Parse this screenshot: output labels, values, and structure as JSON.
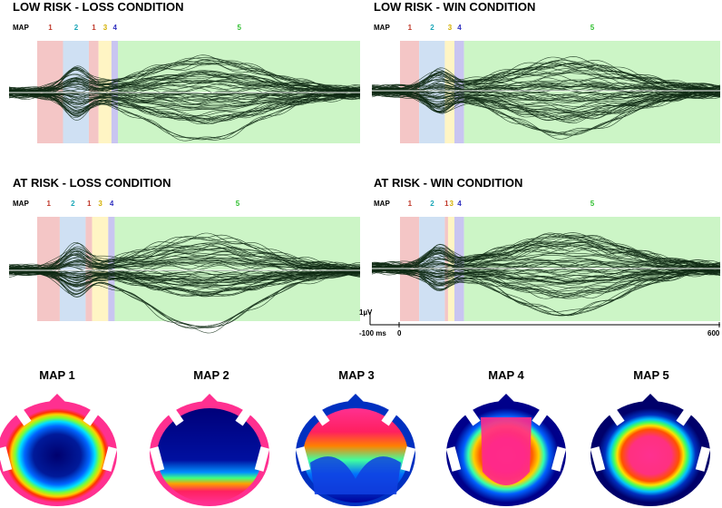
{
  "panels": [
    {
      "title": "LOW RISK - LOSS CONDITION",
      "map_label": "MAP",
      "segments": [
        {
          "label": "1",
          "color": "#f4c6c6",
          "text_color": "#c0392b",
          "start": 0.0,
          "end": 0.08
        },
        {
          "label": "2",
          "color": "#cfe0f3",
          "text_color": "#1aa6b7",
          "start": 0.08,
          "end": 0.16
        },
        {
          "label": "1",
          "color": "#f4c6c6",
          "text_color": "#c0392b",
          "start": 0.16,
          "end": 0.19
        },
        {
          "label": "3",
          "color": "#fff5c4",
          "text_color": "#d4b000",
          "start": 0.19,
          "end": 0.23
        },
        {
          "label": "4",
          "color": "#c9c5f1",
          "text_color": "#2f2fbf",
          "start": 0.23,
          "end": 0.25
        },
        {
          "label": "5",
          "color": "#ccf5c6",
          "text_color": "#2ebf2e",
          "start": 0.25,
          "end": 1.0
        }
      ]
    },
    {
      "title": "LOW RISK - WIN CONDITION",
      "map_label": "MAP",
      "segments": [
        {
          "label": "1",
          "color": "#f4c6c6",
          "text_color": "#c0392b",
          "start": 0.0,
          "end": 0.06
        },
        {
          "label": "2",
          "color": "#cfe0f3",
          "text_color": "#1aa6b7",
          "start": 0.06,
          "end": 0.14
        },
        {
          "label": "3",
          "color": "#fff5c4",
          "text_color": "#d4b000",
          "start": 0.14,
          "end": 0.17
        },
        {
          "label": "4",
          "color": "#c9c5f1",
          "text_color": "#2f2fbf",
          "start": 0.17,
          "end": 0.2
        },
        {
          "label": "5",
          "color": "#ccf5c6",
          "text_color": "#2ebf2e",
          "start": 0.2,
          "end": 1.0
        }
      ]
    },
    {
      "title": "AT RISK - LOSS CONDITION",
      "map_label": "MAP",
      "segments": [
        {
          "label": "1",
          "color": "#f4c6c6",
          "text_color": "#c0392b",
          "start": 0.0,
          "end": 0.07
        },
        {
          "label": "2",
          "color": "#cfe0f3",
          "text_color": "#1aa6b7",
          "start": 0.07,
          "end": 0.15
        },
        {
          "label": "1",
          "color": "#f4c6c6",
          "text_color": "#c0392b",
          "start": 0.15,
          "end": 0.17
        },
        {
          "label": "3",
          "color": "#fff5c4",
          "text_color": "#d4b000",
          "start": 0.17,
          "end": 0.22
        },
        {
          "label": "4",
          "color": "#c9c5f1",
          "text_color": "#2f2fbf",
          "start": 0.22,
          "end": 0.24
        },
        {
          "label": "5",
          "color": "#ccf5c6",
          "text_color": "#2ebf2e",
          "start": 0.24,
          "end": 1.0
        }
      ]
    },
    {
      "title": "AT RISK - WIN CONDITION",
      "map_label": "MAP",
      "segments": [
        {
          "label": "1",
          "color": "#f4c6c6",
          "text_color": "#c0392b",
          "start": 0.0,
          "end": 0.06
        },
        {
          "label": "2",
          "color": "#cfe0f3",
          "text_color": "#1aa6b7",
          "start": 0.06,
          "end": 0.14
        },
        {
          "label": "1",
          "color": "#f4c6c6",
          "text_color": "#c0392b",
          "start": 0.14,
          "end": 0.15
        },
        {
          "label": "3",
          "color": "#fff5c4",
          "text_color": "#d4b000",
          "start": 0.15,
          "end": 0.17
        },
        {
          "label": "4",
          "color": "#c9c5f1",
          "text_color": "#2f2fbf",
          "start": 0.17,
          "end": 0.2
        },
        {
          "label": "5",
          "color": "#ccf5c6",
          "text_color": "#2ebf2e",
          "start": 0.2,
          "end": 1.0
        }
      ]
    }
  ],
  "scale": {
    "amplitude": "1µV",
    "t_start": "-100 ms",
    "t_zero": "0",
    "t_end": "600"
  },
  "topomaps": [
    {
      "title": "MAP 1",
      "pattern": "red-rim-blue-center"
    },
    {
      "title": "MAP 2",
      "pattern": "blue-top-red-bottom"
    },
    {
      "title": "MAP 3",
      "pattern": "red-top-blue-bottom"
    },
    {
      "title": "MAP 4",
      "pattern": "red-center-blue-sides"
    },
    {
      "title": "MAP 5",
      "pattern": "blue-rim-red-center"
    }
  ]
}
